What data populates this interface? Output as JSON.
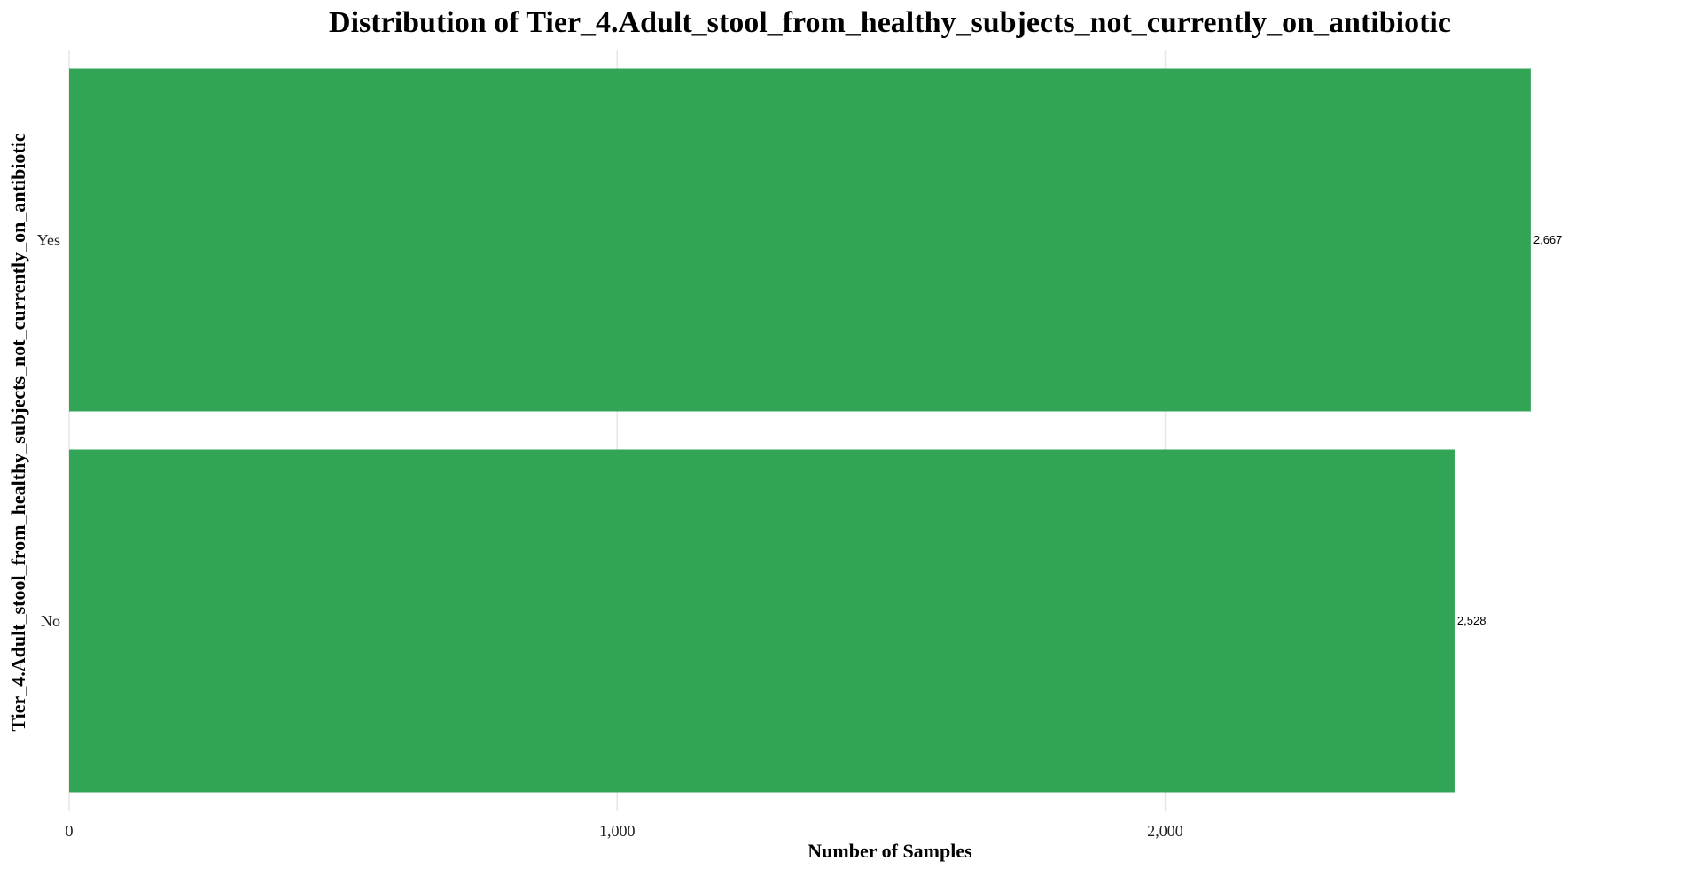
{
  "chart_data": {
    "type": "bar",
    "orientation": "horizontal",
    "title": "Distribution of Tier_4.Adult_stool_from_healthy_subjects_not_currently_on_antibiotic",
    "xlabel": "Number of Samples",
    "ylabel": "Tier_4.Adult_stool_from_healthy_subjects_not_currently_on_antibiotic",
    "categories": [
      "Yes",
      "No"
    ],
    "values": [
      2667,
      2528
    ],
    "data_labels": [
      "2,667",
      "2,528"
    ],
    "xlim": [
      0,
      2850
    ],
    "xticks": [
      0,
      1000,
      2000
    ],
    "xtick_labels": [
      "0",
      "1,000",
      "2,000"
    ],
    "grid": true,
    "legend": "none",
    "bar_color": "#32a456",
    "grid_color": "#e6e6e6"
  }
}
